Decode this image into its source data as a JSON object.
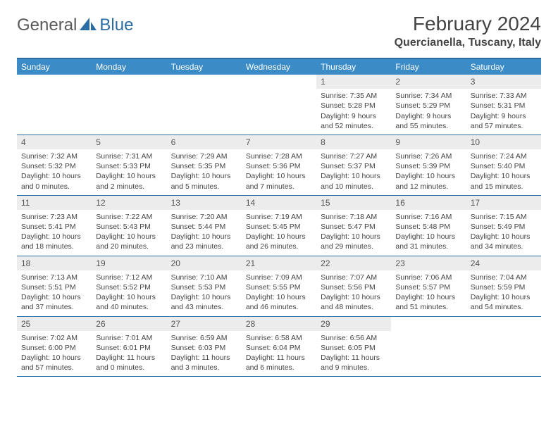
{
  "logo": {
    "part1": "General",
    "part2": "Blue"
  },
  "title": "February 2024",
  "location": "Quercianella, Tuscany, Italy",
  "colors": {
    "header_bg": "#3b8bc6",
    "border": "#2b6ca3",
    "daynum_bg": "#ececec",
    "logo_gray": "#5a5a5a",
    "logo_blue": "#2b6ca3"
  },
  "typography": {
    "title_fontsize": 28,
    "location_fontsize": 16,
    "header_fontsize": 12,
    "cell_fontsize": 10.5
  },
  "day_names": [
    "Sunday",
    "Monday",
    "Tuesday",
    "Wednesday",
    "Thursday",
    "Friday",
    "Saturday"
  ],
  "weeks": [
    [
      {
        "blank": true
      },
      {
        "blank": true
      },
      {
        "blank": true
      },
      {
        "blank": true
      },
      {
        "num": "1",
        "sunrise": "Sunrise: 7:35 AM",
        "sunset": "Sunset: 5:28 PM",
        "day1": "Daylight: 9 hours",
        "day2": "and 52 minutes."
      },
      {
        "num": "2",
        "sunrise": "Sunrise: 7:34 AM",
        "sunset": "Sunset: 5:29 PM",
        "day1": "Daylight: 9 hours",
        "day2": "and 55 minutes."
      },
      {
        "num": "3",
        "sunrise": "Sunrise: 7:33 AM",
        "sunset": "Sunset: 5:31 PM",
        "day1": "Daylight: 9 hours",
        "day2": "and 57 minutes."
      }
    ],
    [
      {
        "num": "4",
        "sunrise": "Sunrise: 7:32 AM",
        "sunset": "Sunset: 5:32 PM",
        "day1": "Daylight: 10 hours",
        "day2": "and 0 minutes."
      },
      {
        "num": "5",
        "sunrise": "Sunrise: 7:31 AM",
        "sunset": "Sunset: 5:33 PM",
        "day1": "Daylight: 10 hours",
        "day2": "and 2 minutes."
      },
      {
        "num": "6",
        "sunrise": "Sunrise: 7:29 AM",
        "sunset": "Sunset: 5:35 PM",
        "day1": "Daylight: 10 hours",
        "day2": "and 5 minutes."
      },
      {
        "num": "7",
        "sunrise": "Sunrise: 7:28 AM",
        "sunset": "Sunset: 5:36 PM",
        "day1": "Daylight: 10 hours",
        "day2": "and 7 minutes."
      },
      {
        "num": "8",
        "sunrise": "Sunrise: 7:27 AM",
        "sunset": "Sunset: 5:37 PM",
        "day1": "Daylight: 10 hours",
        "day2": "and 10 minutes."
      },
      {
        "num": "9",
        "sunrise": "Sunrise: 7:26 AM",
        "sunset": "Sunset: 5:39 PM",
        "day1": "Daylight: 10 hours",
        "day2": "and 12 minutes."
      },
      {
        "num": "10",
        "sunrise": "Sunrise: 7:24 AM",
        "sunset": "Sunset: 5:40 PM",
        "day1": "Daylight: 10 hours",
        "day2": "and 15 minutes."
      }
    ],
    [
      {
        "num": "11",
        "sunrise": "Sunrise: 7:23 AM",
        "sunset": "Sunset: 5:41 PM",
        "day1": "Daylight: 10 hours",
        "day2": "and 18 minutes."
      },
      {
        "num": "12",
        "sunrise": "Sunrise: 7:22 AM",
        "sunset": "Sunset: 5:43 PM",
        "day1": "Daylight: 10 hours",
        "day2": "and 20 minutes."
      },
      {
        "num": "13",
        "sunrise": "Sunrise: 7:20 AM",
        "sunset": "Sunset: 5:44 PM",
        "day1": "Daylight: 10 hours",
        "day2": "and 23 minutes."
      },
      {
        "num": "14",
        "sunrise": "Sunrise: 7:19 AM",
        "sunset": "Sunset: 5:45 PM",
        "day1": "Daylight: 10 hours",
        "day2": "and 26 minutes."
      },
      {
        "num": "15",
        "sunrise": "Sunrise: 7:18 AM",
        "sunset": "Sunset: 5:47 PM",
        "day1": "Daylight: 10 hours",
        "day2": "and 29 minutes."
      },
      {
        "num": "16",
        "sunrise": "Sunrise: 7:16 AM",
        "sunset": "Sunset: 5:48 PM",
        "day1": "Daylight: 10 hours",
        "day2": "and 31 minutes."
      },
      {
        "num": "17",
        "sunrise": "Sunrise: 7:15 AM",
        "sunset": "Sunset: 5:49 PM",
        "day1": "Daylight: 10 hours",
        "day2": "and 34 minutes."
      }
    ],
    [
      {
        "num": "18",
        "sunrise": "Sunrise: 7:13 AM",
        "sunset": "Sunset: 5:51 PM",
        "day1": "Daylight: 10 hours",
        "day2": "and 37 minutes."
      },
      {
        "num": "19",
        "sunrise": "Sunrise: 7:12 AM",
        "sunset": "Sunset: 5:52 PM",
        "day1": "Daylight: 10 hours",
        "day2": "and 40 minutes."
      },
      {
        "num": "20",
        "sunrise": "Sunrise: 7:10 AM",
        "sunset": "Sunset: 5:53 PM",
        "day1": "Daylight: 10 hours",
        "day2": "and 43 minutes."
      },
      {
        "num": "21",
        "sunrise": "Sunrise: 7:09 AM",
        "sunset": "Sunset: 5:55 PM",
        "day1": "Daylight: 10 hours",
        "day2": "and 46 minutes."
      },
      {
        "num": "22",
        "sunrise": "Sunrise: 7:07 AM",
        "sunset": "Sunset: 5:56 PM",
        "day1": "Daylight: 10 hours",
        "day2": "and 48 minutes."
      },
      {
        "num": "23",
        "sunrise": "Sunrise: 7:06 AM",
        "sunset": "Sunset: 5:57 PM",
        "day1": "Daylight: 10 hours",
        "day2": "and 51 minutes."
      },
      {
        "num": "24",
        "sunrise": "Sunrise: 7:04 AM",
        "sunset": "Sunset: 5:59 PM",
        "day1": "Daylight: 10 hours",
        "day2": "and 54 minutes."
      }
    ],
    [
      {
        "num": "25",
        "sunrise": "Sunrise: 7:02 AM",
        "sunset": "Sunset: 6:00 PM",
        "day1": "Daylight: 10 hours",
        "day2": "and 57 minutes."
      },
      {
        "num": "26",
        "sunrise": "Sunrise: 7:01 AM",
        "sunset": "Sunset: 6:01 PM",
        "day1": "Daylight: 11 hours",
        "day2": "and 0 minutes."
      },
      {
        "num": "27",
        "sunrise": "Sunrise: 6:59 AM",
        "sunset": "Sunset: 6:03 PM",
        "day1": "Daylight: 11 hours",
        "day2": "and 3 minutes."
      },
      {
        "num": "28",
        "sunrise": "Sunrise: 6:58 AM",
        "sunset": "Sunset: 6:04 PM",
        "day1": "Daylight: 11 hours",
        "day2": "and 6 minutes."
      },
      {
        "num": "29",
        "sunrise": "Sunrise: 6:56 AM",
        "sunset": "Sunset: 6:05 PM",
        "day1": "Daylight: 11 hours",
        "day2": "and 9 minutes."
      },
      {
        "blank": true
      },
      {
        "blank": true
      }
    ]
  ]
}
